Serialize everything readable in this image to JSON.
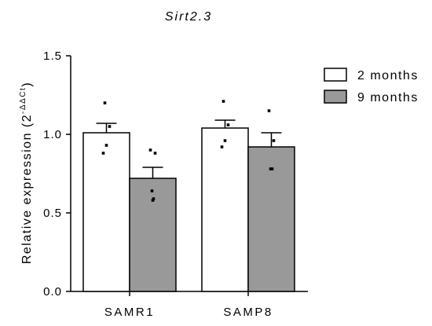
{
  "chart_data": {
    "type": "bar",
    "title": "Sirt2.3",
    "ylabel_main": "Relative expression (2",
    "ylabel_sup": "-ΔΔCt",
    "ylabel_close": ")",
    "ylim": [
      0,
      1.5
    ],
    "yticks": [
      "0.0",
      "0.5",
      "1.0",
      "1.5"
    ],
    "categories": [
      "SAMR1",
      "SAMP8"
    ],
    "legend_position": "top-right",
    "series": [
      {
        "name": "2 months",
        "color": "#ffffff",
        "values": [
          1.01,
          1.04
        ],
        "errors": [
          0.06,
          0.05
        ],
        "points": [
          [
            1.2,
            1.05,
            0.93,
            0.88
          ],
          [
            1.21,
            1.06,
            0.96,
            0.92
          ]
        ]
      },
      {
        "name": "9 months",
        "color": "#999999",
        "values": [
          0.72,
          0.92
        ],
        "errors": [
          0.07,
          0.09
        ],
        "points": [
          [
            0.9,
            0.88,
            0.64,
            0.59,
            0.58
          ],
          [
            1.15,
            0.96,
            0.78,
            0.78
          ]
        ]
      }
    ]
  }
}
